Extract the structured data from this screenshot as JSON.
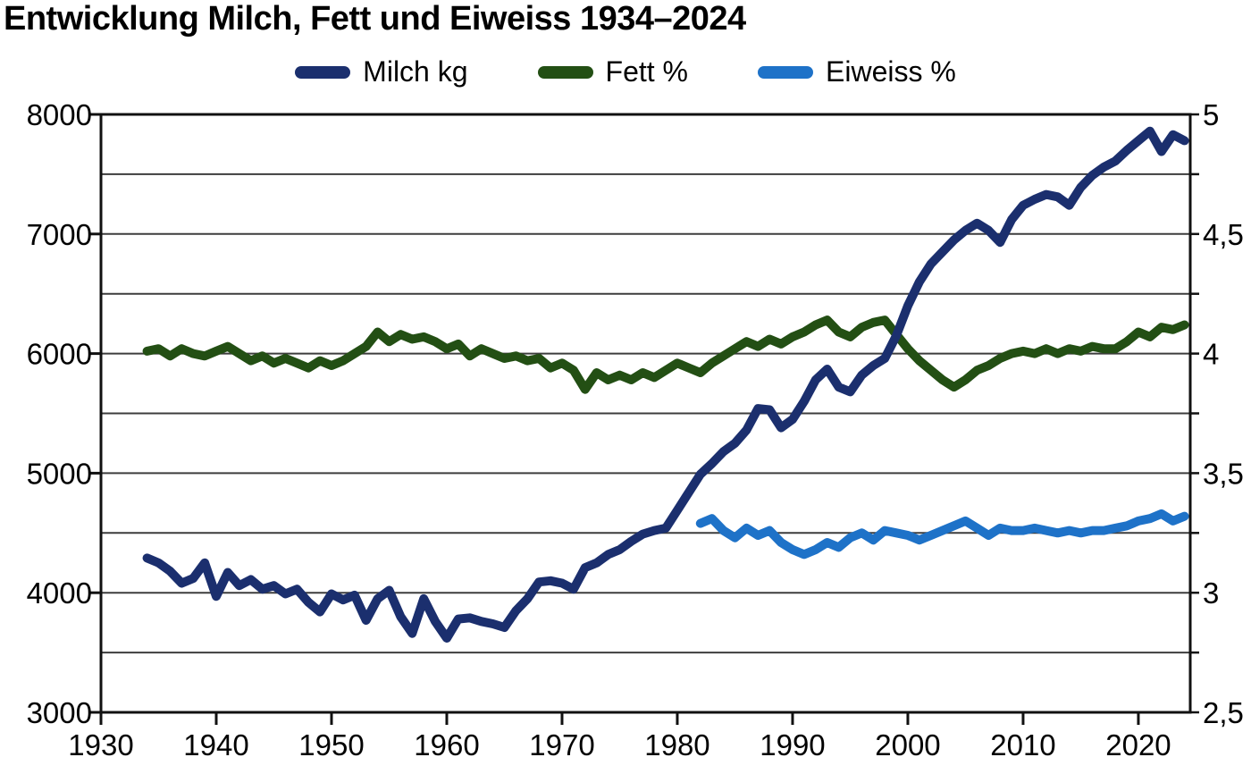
{
  "chart_data": {
    "type": "line",
    "title": "Entwicklung Milch, Fett und Eiweiss 1934–2024",
    "grid": true,
    "legend_position": "top-center",
    "x_axis": {
      "min": 1930,
      "max": 2024.5,
      "tick_values": [
        1930,
        1940,
        1950,
        1960,
        1970,
        1980,
        1990,
        2000,
        2010,
        2020
      ],
      "tick_labels": [
        "1930",
        "1940",
        "1950",
        "1960",
        "1970",
        "1980",
        "1990",
        "2000",
        "2010",
        "2020"
      ]
    },
    "y_axis_left": {
      "applies_to": "Milch kg",
      "min": 3000,
      "max": 8000,
      "grid_step": 500,
      "tick_values": [
        8000,
        7000,
        6000,
        5000,
        4000,
        3000
      ],
      "tick_labels": [
        "8000",
        "7000",
        "6000",
        "5000",
        "4000",
        "3000"
      ]
    },
    "y_axis_right": {
      "applies_to": "Fett % / Eiweiss %",
      "min": 2.5,
      "max": 5,
      "grid_step": 0.25,
      "tick_values": [
        5,
        4.5,
        4,
        3.5,
        3,
        2.5
      ],
      "tick_labels": [
        "5",
        "4,5",
        "4",
        "3,5",
        "3",
        "2,5"
      ]
    },
    "series": [
      {
        "name": "Milch kg",
        "color": "#1b2f6e",
        "axis": "left",
        "start_year": 1934,
        "values": [
          4290,
          4250,
          4180,
          4080,
          4120,
          4250,
          3970,
          4170,
          4060,
          4110,
          4030,
          4060,
          3990,
          4030,
          3920,
          3840,
          3990,
          3940,
          3980,
          3770,
          3950,
          4020,
          3800,
          3660,
          3950,
          3760,
          3620,
          3780,
          3790,
          3760,
          3740,
          3710,
          3850,
          3950,
          4090,
          4100,
          4080,
          4030,
          4210,
          4250,
          4320,
          4360,
          4430,
          4490,
          4520,
          4540,
          4690,
          4840,
          4990,
          5080,
          5180,
          5250,
          5360,
          5540,
          5530,
          5380,
          5450,
          5600,
          5780,
          5870,
          5720,
          5680,
          5820,
          5900,
          5960,
          6150,
          6400,
          6600,
          6750,
          6850,
          6950,
          7030,
          7090,
          7030,
          6930,
          7120,
          7240,
          7290,
          7330,
          7310,
          7240,
          7390,
          7490,
          7560,
          7610,
          7700,
          7780,
          7860,
          7690,
          7830,
          7780
        ]
      },
      {
        "name": "Fett %",
        "color": "#234f14",
        "axis": "right",
        "start_year": 1934,
        "values": [
          4.01,
          4.02,
          3.99,
          4.02,
          4.0,
          3.99,
          4.01,
          4.03,
          4.0,
          3.97,
          3.99,
          3.96,
          3.98,
          3.96,
          3.94,
          3.97,
          3.95,
          3.97,
          4.0,
          4.03,
          4.09,
          4.05,
          4.08,
          4.06,
          4.07,
          4.05,
          4.02,
          4.04,
          3.99,
          4.02,
          4.0,
          3.98,
          3.99,
          3.97,
          3.98,
          3.94,
          3.96,
          3.93,
          3.85,
          3.92,
          3.89,
          3.91,
          3.89,
          3.92,
          3.9,
          3.93,
          3.96,
          3.94,
          3.92,
          3.96,
          3.99,
          4.02,
          4.05,
          4.03,
          4.06,
          4.04,
          4.07,
          4.09,
          4.12,
          4.14,
          4.09,
          4.07,
          4.11,
          4.13,
          4.14,
          4.08,
          4.02,
          3.97,
          3.93,
          3.89,
          3.86,
          3.89,
          3.93,
          3.95,
          3.98,
          4.0,
          4.01,
          4.0,
          4.02,
          4.0,
          4.02,
          4.01,
          4.03,
          4.02,
          4.02,
          4.05,
          4.09,
          4.07,
          4.11,
          4.1,
          4.12
        ]
      },
      {
        "name": "Eiweiss %",
        "color": "#1e72c8",
        "axis": "right",
        "start_year": 1982,
        "values": [
          3.29,
          3.31,
          3.26,
          3.23,
          3.27,
          3.24,
          3.26,
          3.21,
          3.18,
          3.16,
          3.18,
          3.21,
          3.19,
          3.23,
          3.25,
          3.22,
          3.26,
          3.25,
          3.24,
          3.22,
          3.24,
          3.26,
          3.28,
          3.3,
          3.27,
          3.24,
          3.27,
          3.26,
          3.26,
          3.27,
          3.26,
          3.25,
          3.26,
          3.25,
          3.26,
          3.26,
          3.27,
          3.28,
          3.3,
          3.31,
          3.33,
          3.3,
          3.32
        ]
      }
    ]
  },
  "colors": {
    "background": "#ffffff",
    "grid": "#3d3d3d",
    "axis": "#111111",
    "text": "#000000"
  }
}
